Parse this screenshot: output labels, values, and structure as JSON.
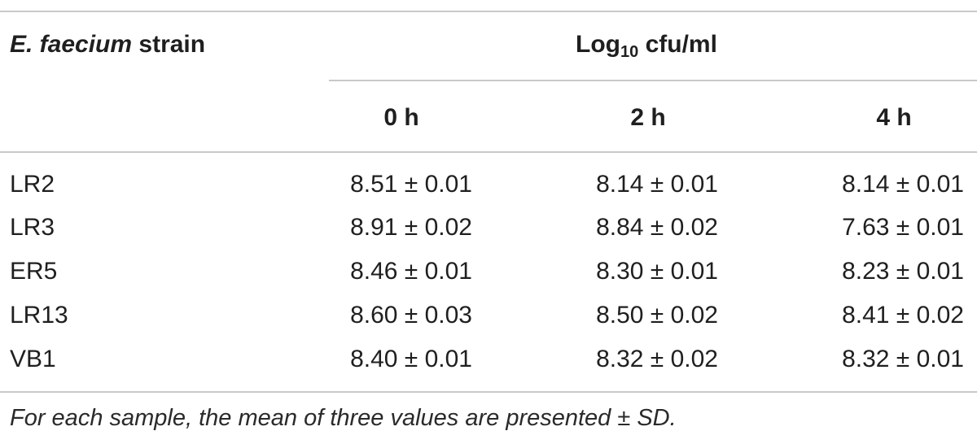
{
  "table": {
    "header": {
      "strain_prefix": "E. faecium",
      "strain_suffix": " strain",
      "group_main": "Log",
      "group_sub": "10",
      "group_suffix": " cfu/ml",
      "columns": [
        "0 h",
        "2 h",
        "4 h"
      ]
    },
    "rows": [
      {
        "strain": "LR2",
        "values": [
          "8.51 ± 0.01",
          "8.14 ± 0.01",
          "8.14 ± 0.01"
        ]
      },
      {
        "strain": "LR3",
        "values": [
          "8.91 ± 0.02",
          "8.84 ± 0.02",
          "7.63 ± 0.01"
        ]
      },
      {
        "strain": "ER5",
        "values": [
          "8.46 ± 0.01",
          "8.30 ± 0.01",
          "8.23 ± 0.01"
        ]
      },
      {
        "strain": "LR13",
        "values": [
          "8.60 ± 0.03",
          "8.50 ± 0.02",
          "8.41 ± 0.02"
        ]
      },
      {
        "strain": "VB1",
        "values": [
          "8.40 ± 0.01",
          "8.32 ± 0.02",
          "8.32 ± 0.01"
        ]
      }
    ],
    "footnote": "For each sample, the mean of three values are presented ± SD."
  }
}
